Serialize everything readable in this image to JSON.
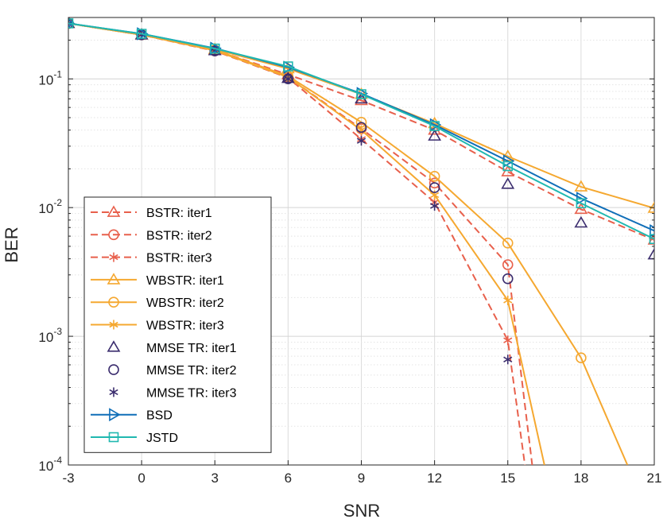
{
  "chart_data": {
    "type": "line",
    "xscale": "linear",
    "yscale": "log",
    "xlabel": "SNR",
    "ylabel": "BER",
    "xlim": [
      -3,
      21
    ],
    "ylim": [
      0.0001,
      0.3
    ],
    "xticks": [
      -3,
      0,
      3,
      6,
      9,
      12,
      15,
      18,
      21
    ],
    "xtick_labels": [
      "-3",
      "0",
      "3",
      "6",
      "9",
      "12",
      "15",
      "18",
      "21"
    ],
    "yticks": [
      {
        "value": 0.1,
        "base": "10",
        "exp": "-1"
      },
      {
        "value": 0.01,
        "base": "10",
        "exp": "-2"
      },
      {
        "value": 0.001,
        "base": "10",
        "exp": "-3"
      },
      {
        "value": 0.0001,
        "base": "10",
        "exp": "-4"
      }
    ],
    "grid": true,
    "legend_position": "bottom-left",
    "series": [
      {
        "name": "BSTR: iter1",
        "color": "#e8604c",
        "dash": "dashed",
        "marker": "triangle",
        "x": [
          -3,
          0,
          3,
          6,
          9,
          12,
          15,
          18,
          21
        ],
        "y": [
          0.27,
          0.22,
          0.168,
          0.108,
          0.068,
          0.04,
          0.019,
          0.0097,
          0.0056
        ]
      },
      {
        "name": "BSTR: iter2",
        "color": "#e8604c",
        "dash": "dashed",
        "marker": "circle",
        "x": [
          -3,
          0,
          3,
          6,
          9,
          12,
          15,
          16
        ],
        "y": [
          0.27,
          0.22,
          0.165,
          0.103,
          0.041,
          0.0155,
          0.0036,
          0.0001
        ]
      },
      {
        "name": "BSTR: iter3",
        "color": "#e8604c",
        "dash": "dashed",
        "marker": "asterisk",
        "x": [
          -3,
          0,
          3,
          6,
          9,
          12,
          15,
          15.7
        ],
        "y": [
          0.27,
          0.22,
          0.165,
          0.102,
          0.034,
          0.011,
          0.00093,
          0.0001
        ]
      },
      {
        "name": "WBSTR: iter1",
        "color": "#f5a830",
        "dash": "solid",
        "marker": "triangle",
        "x": [
          -3,
          0,
          3,
          6,
          9,
          12,
          15,
          18,
          21
        ],
        "y": [
          0.27,
          0.22,
          0.17,
          0.12,
          0.076,
          0.045,
          0.025,
          0.0145,
          0.0099
        ]
      },
      {
        "name": "WBSTR: iter2",
        "color": "#f5a830",
        "dash": "solid",
        "marker": "circle",
        "x": [
          -3,
          0,
          3,
          6,
          9,
          12,
          15,
          18,
          19.9
        ],
        "y": [
          0.27,
          0.22,
          0.168,
          0.105,
          0.046,
          0.0175,
          0.0053,
          0.00068,
          0.0001
        ]
      },
      {
        "name": "WBSTR: iter3",
        "color": "#f5a830",
        "dash": "solid",
        "marker": "asterisk",
        "x": [
          -3,
          0,
          3,
          6,
          9,
          12,
          15,
          16.5
        ],
        "y": [
          0.27,
          0.22,
          0.166,
          0.103,
          0.04,
          0.0125,
          0.0019,
          0.0001
        ]
      },
      {
        "name": "MMSE TR: iter1",
        "color": "#3b2d6e",
        "dash": "none",
        "marker": "triangle",
        "x": [
          -3,
          0,
          3,
          6,
          9,
          12,
          15,
          18,
          21
        ],
        "y": [
          0.27,
          0.22,
          0.166,
          0.101,
          0.07,
          0.036,
          0.0152,
          0.0076,
          0.0043
        ]
      },
      {
        "name": "MMSE TR: iter2",
        "color": "#3b2d6e",
        "dash": "none",
        "marker": "circle",
        "x": [
          -3,
          0,
          3,
          6,
          9,
          12,
          15
        ],
        "y": [
          0.27,
          0.22,
          0.165,
          0.1,
          0.042,
          0.0143,
          0.0028
        ]
      },
      {
        "name": "MMSE TR: iter3",
        "color": "#3b2d6e",
        "dash": "none",
        "marker": "asterisk",
        "x": [
          -3,
          0,
          3,
          6,
          9,
          12,
          15
        ],
        "y": [
          0.27,
          0.22,
          0.165,
          0.1,
          0.033,
          0.0103,
          0.00066
        ]
      },
      {
        "name": "BSD",
        "color": "#0f6eb8",
        "dash": "solid",
        "marker": "triangle-right",
        "x": [
          -3,
          0,
          3,
          6,
          9,
          12,
          15,
          18,
          21
        ],
        "y": [
          0.27,
          0.224,
          0.173,
          0.123,
          0.077,
          0.044,
          0.023,
          0.0118,
          0.0066
        ]
      },
      {
        "name": "JSTD",
        "color": "#20b8b0",
        "dash": "solid",
        "marker": "square",
        "x": [
          -3,
          0,
          3,
          6,
          9,
          12,
          15,
          18,
          21
        ],
        "y": [
          0.27,
          0.224,
          0.172,
          0.125,
          0.076,
          0.043,
          0.021,
          0.0108,
          0.0057
        ]
      }
    ]
  }
}
